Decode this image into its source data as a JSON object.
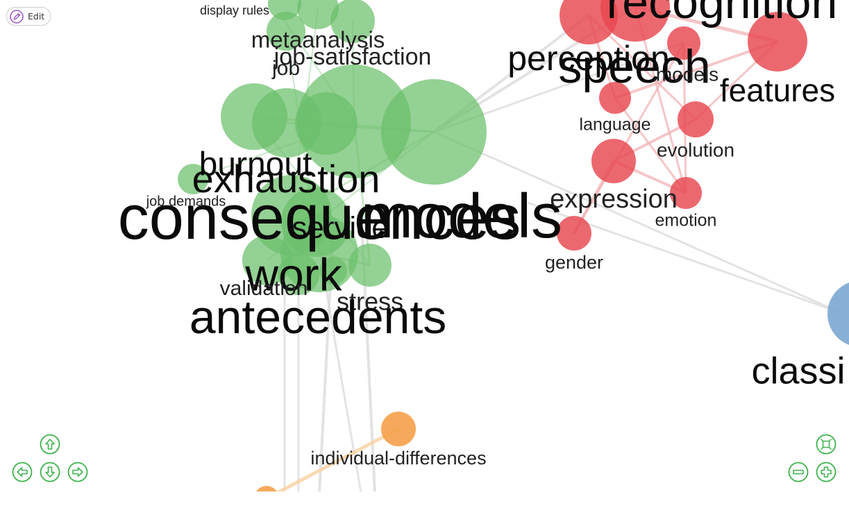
{
  "toolbar": {
    "edit_label": "Edit"
  },
  "colors": {
    "green": "#6bbf6b",
    "red": "#e8474f",
    "orange": "#f5a04a",
    "blue": "#7ba7d1",
    "edge_grey": "#d9d9d9",
    "control": "#3cb34a"
  },
  "icons": {
    "edit": "pencil-icon",
    "pan_up": "arrow-up-icon",
    "pan_left": "arrow-left-icon",
    "pan_down": "arrow-down-icon",
    "pan_right": "arrow-right-icon",
    "zoom_out": "minus-icon",
    "zoom_in": "plus-icon",
    "fit": "fit-to-screen-icon"
  },
  "network": {
    "nodes": [
      {
        "id": "display-rules",
        "label": "display rules",
        "cluster": "green"
      },
      {
        "id": "metaanalysis",
        "label": "metaanalysis",
        "cluster": "green"
      },
      {
        "id": "job-satisfaction",
        "label": "job-satisfaction",
        "cluster": "green"
      },
      {
        "id": "job",
        "label": "job",
        "cluster": "green"
      },
      {
        "id": "burnout",
        "label": "burnout",
        "cluster": "green"
      },
      {
        "id": "exhaustion",
        "label": "exhaustion",
        "cluster": "green"
      },
      {
        "id": "job-demands",
        "label": "job demands",
        "cluster": "green"
      },
      {
        "id": "consequences",
        "label": "consequences",
        "cluster": "green"
      },
      {
        "id": "models-green",
        "label": "models",
        "cluster": "green"
      },
      {
        "id": "service",
        "label": "service",
        "cluster": "green"
      },
      {
        "id": "work",
        "label": "work",
        "cluster": "green"
      },
      {
        "id": "validation",
        "label": "validation",
        "cluster": "green"
      },
      {
        "id": "stress",
        "label": "stress",
        "cluster": "green"
      },
      {
        "id": "antecedents",
        "label": "antecedents",
        "cluster": "green"
      },
      {
        "id": "recognition",
        "label": "recognition",
        "cluster": "red"
      },
      {
        "id": "perception",
        "label": "perception",
        "cluster": "red"
      },
      {
        "id": "speech",
        "label": "speech",
        "cluster": "red"
      },
      {
        "id": "models-red",
        "label": "models",
        "cluster": "red"
      },
      {
        "id": "features",
        "label": "features",
        "cluster": "red"
      },
      {
        "id": "language",
        "label": "language",
        "cluster": "red"
      },
      {
        "id": "evolution",
        "label": "evolution",
        "cluster": "red"
      },
      {
        "id": "expression",
        "label": "expression",
        "cluster": "red"
      },
      {
        "id": "emotion",
        "label": "emotion",
        "cluster": "red"
      },
      {
        "id": "gender",
        "label": "gender",
        "cluster": "red"
      },
      {
        "id": "individual-differences",
        "label": "individual-differences",
        "cluster": "orange"
      },
      {
        "id": "classification",
        "label": "classi",
        "cluster": "blue"
      }
    ]
  }
}
